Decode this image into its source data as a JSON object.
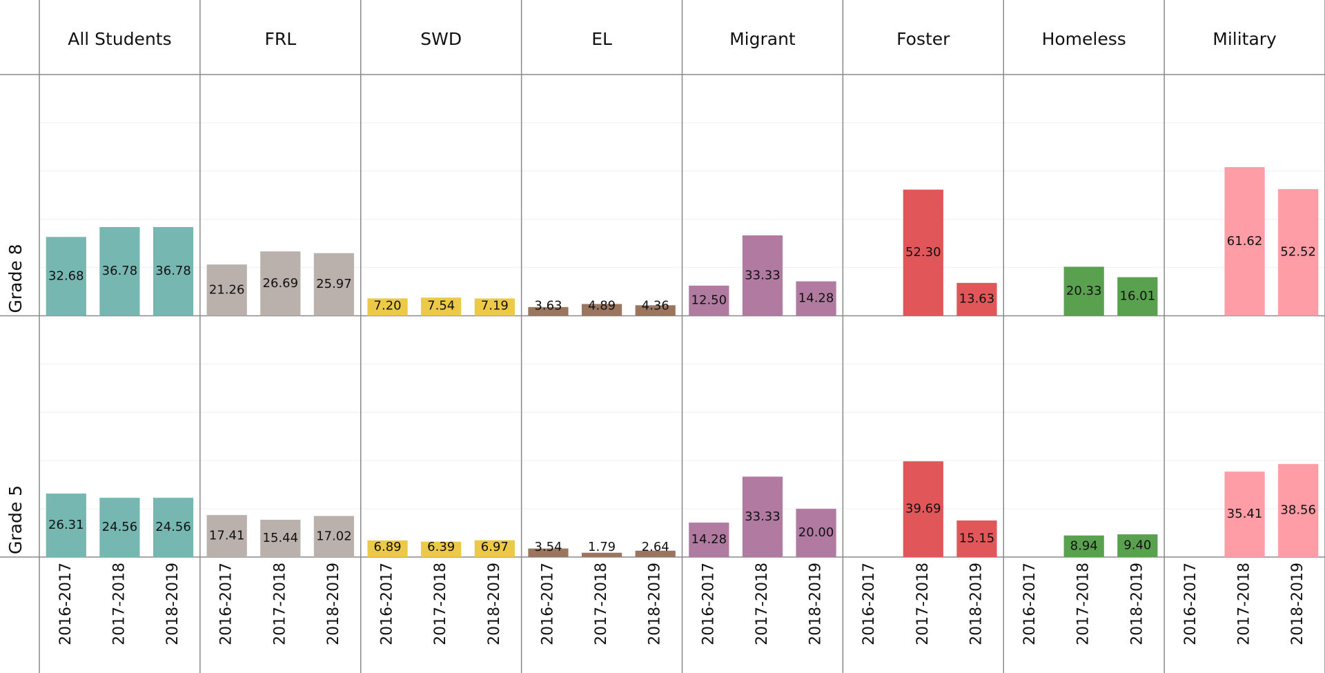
{
  "chart_data": {
    "type": "bar",
    "groups": [
      {
        "name": "All Students",
        "color": "#76b7b2"
      },
      {
        "name": "FRL",
        "color": "#bab0ac"
      },
      {
        "name": "SWD",
        "color": "#edc948"
      },
      {
        "name": "EL",
        "color": "#9c755f"
      },
      {
        "name": "Migrant",
        "color": "#b07aa1"
      },
      {
        "name": "Foster",
        "color": "#e15759"
      },
      {
        "name": "Homeless",
        "color": "#59a14f"
      },
      {
        "name": "Military",
        "color": "#ff9da7"
      }
    ],
    "categories": [
      "2016-2017",
      "2017-2018",
      "2018-2019"
    ],
    "rows": [
      {
        "name": "Grade 8",
        "values": [
          [
            32.68,
            36.78,
            36.78
          ],
          [
            21.26,
            26.69,
            25.97
          ],
          [
            7.2,
            7.54,
            7.19
          ],
          [
            3.63,
            4.89,
            4.36
          ],
          [
            12.5,
            33.33,
            14.28
          ],
          [
            null,
            52.3,
            13.63
          ],
          [
            null,
            20.33,
            16.01
          ],
          [
            null,
            61.62,
            52.52
          ]
        ],
        "value_labels": [
          [
            "32.68",
            "36.78",
            "36.78"
          ],
          [
            "21.26",
            "26.69",
            "25.97"
          ],
          [
            "7.20",
            "7.54",
            "7.19"
          ],
          [
            "3.63",
            "4.89",
            "4.36"
          ],
          [
            "12.50",
            "33.33",
            "14.28"
          ],
          [
            null,
            "52.30",
            "13.63"
          ],
          [
            null,
            "20.33",
            "16.01"
          ],
          [
            null,
            "61.62",
            "52.52"
          ]
        ]
      },
      {
        "name": "Grade 5",
        "values": [
          [
            26.31,
            24.56,
            24.56
          ],
          [
            17.41,
            15.44,
            17.02
          ],
          [
            6.89,
            6.39,
            6.97
          ],
          [
            3.54,
            1.79,
            2.64
          ],
          [
            14.28,
            33.33,
            20.0
          ],
          [
            null,
            39.69,
            15.15
          ],
          [
            null,
            8.94,
            9.4
          ],
          [
            null,
            35.41,
            38.56
          ]
        ],
        "value_labels": [
          [
            "26.31",
            "24.56",
            "24.56"
          ],
          [
            "17.41",
            "15.44",
            "17.02"
          ],
          [
            "6.89",
            "6.39",
            "6.97"
          ],
          [
            "3.54",
            "1.79",
            "2.64"
          ],
          [
            "14.28",
            "33.33",
            "20.00"
          ],
          [
            null,
            "39.69",
            "15.15"
          ],
          [
            null,
            "8.94",
            "9.40"
          ],
          [
            null,
            "35.41",
            "38.56"
          ]
        ]
      }
    ],
    "ylim": [
      0,
      100
    ],
    "yticks": [
      0,
      20,
      40,
      60,
      80,
      100
    ],
    "grid": true
  }
}
